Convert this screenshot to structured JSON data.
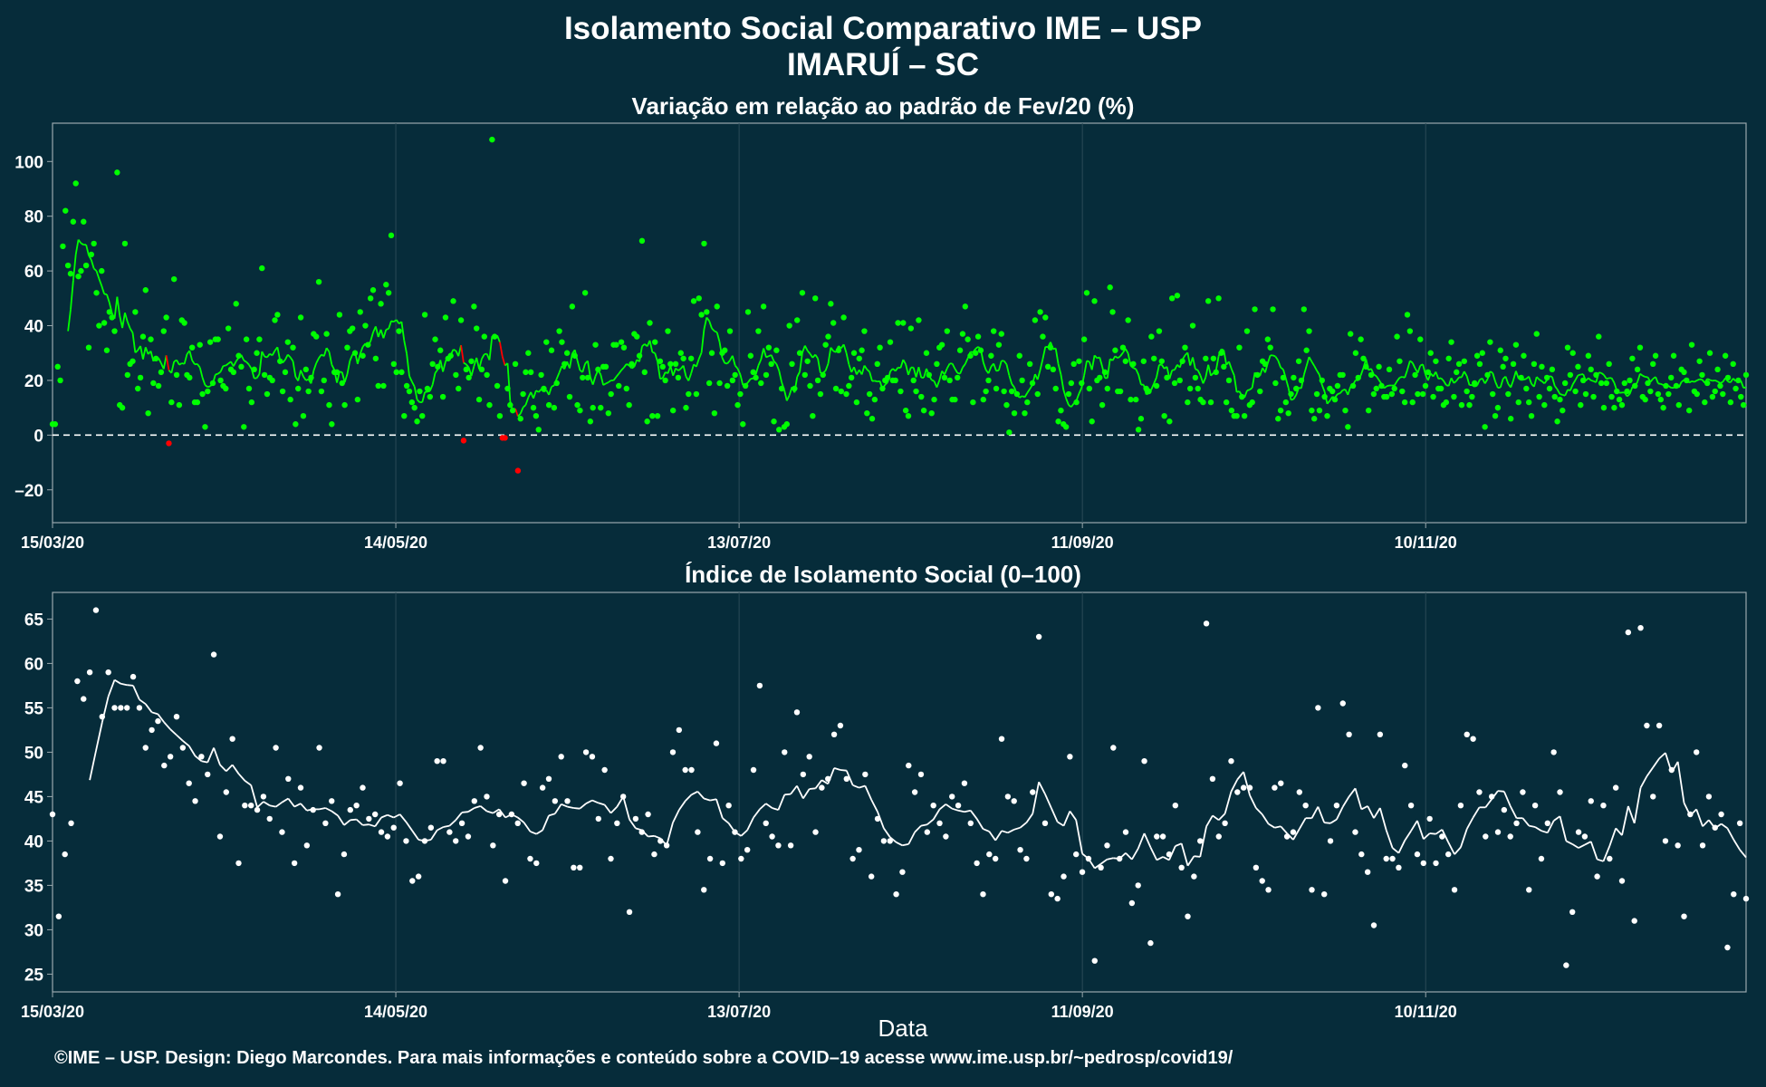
{
  "header": {
    "title": "Isolamento Social Comparativo IME – USP",
    "subtitle": "IMARUÍ – SC"
  },
  "footer": {
    "credit": "©IME – USP. Design: Diego Marcondes. Para mais informações e conteúdo sobre a COVID–19 acesse www.ime.usp.br/~pedrosp/covid19/"
  },
  "colors": {
    "background": "#062c3a",
    "positive": "#00ff00",
    "negative": "#ff0000",
    "index": "#ffffff",
    "panel_border": "#9aa8ad",
    "grid": "#2a4a57"
  },
  "chart_data": [
    {
      "type": "scatter",
      "title": "Variação em relação ao padrão de Fev/20 (%)",
      "xlabel": "",
      "ylabel": "",
      "x_start": "15/03/20",
      "x_tick_labels": [
        "15/03/20",
        "14/05/20",
        "13/07/20",
        "11/09/20",
        "10/11/20"
      ],
      "x_tick_days": [
        0,
        60,
        120,
        180,
        240
      ],
      "xlim_days": [
        0,
        296
      ],
      "y_ticks": [
        -20,
        0,
        20,
        40,
        60,
        80,
        100
      ],
      "y_tick_labels": [
        "–20",
        "0",
        "20",
        "40",
        "60",
        "80",
        "100"
      ],
      "ylim": [
        -32,
        114
      ],
      "reference_line": 0,
      "grid": true,
      "series": [
        {
          "values": [
            4,
            4,
            25,
            20,
            69,
            82,
            62,
            59,
            78,
            92,
            58,
            60,
            78,
            62,
            32,
            66,
            70,
            52,
            40,
            60,
            41,
            31,
            45,
            43,
            38,
            96,
            11,
            10,
            70,
            22,
            26,
            27,
            45,
            17,
            21,
            36,
            53,
            8,
            35,
            19,
            28,
            18,
            23,
            38,
            43,
            -3,
            12,
            57,
            22,
            11,
            42,
            41,
            22,
            21,
            32,
            12,
            12,
            33,
            15,
            3,
            16,
            34,
            19,
            35,
            35,
            20,
            18,
            17,
            39,
            24,
            23,
            48,
            29,
            25,
            3,
            35,
            17,
            12,
            24,
            30,
            35,
            61,
            22,
            15,
            21,
            20,
            42,
            44,
            27,
            16,
            23,
            34,
            13,
            32,
            4,
            17,
            43,
            7,
            24,
            16,
            21,
            37,
            36,
            56,
            16,
            20,
            37,
            11,
            4,
            23,
            23,
            44,
            19,
            11,
            32,
            38,
            39,
            30,
            13,
            45,
            29,
            40,
            33,
            50,
            53,
            28,
            18,
            48,
            18,
            55,
            52,
            73,
            26,
            23,
            38,
            23,
            7,
            18,
            16,
            12,
            10,
            5,
            16,
            7,
            44,
            17,
            14,
            26,
            35,
            25,
            31,
            14,
            43,
            28,
            29,
            49,
            22,
            17,
            42,
            -2,
            24,
            21,
            27,
            47,
            39,
            13,
            24,
            36,
            22,
            11,
            108,
            36,
            18,
            7,
            -1,
            -1,
            17,
            11,
            9,
            26,
            -13,
            6,
            15,
            23,
            30,
            23,
            10,
            7,
            2,
            22,
            17,
            34,
            11,
            31,
            10,
            19,
            38,
            34,
            26,
            30,
            14,
            47,
            29,
            11,
            9,
            21,
            52,
            21,
            5,
            10,
            33,
            24,
            10,
            25,
            25,
            8,
            15,
            33,
            33,
            18,
            34,
            32,
            17,
            11,
            26,
            37,
            36,
            29,
            71,
            23,
            5,
            41,
            7,
            34,
            7,
            27,
            25,
            20,
            38,
            26,
            9,
            26,
            21,
            30,
            28,
            10,
            15,
            28,
            49,
            15,
            50,
            44,
            70,
            45,
            19,
            30,
            8,
            47,
            19,
            30,
            31,
            18,
            38,
            20,
            22,
            11,
            15,
            4,
            18,
            45,
            29,
            23,
            21,
            38,
            19,
            47,
            22,
            32,
            26,
            5,
            31,
            2,
            17,
            3,
            4,
            40,
            26,
            17,
            42,
            30,
            52,
            22,
            27,
            18,
            7,
            50,
            20,
            15,
            22,
            33,
            36,
            48,
            41,
            17,
            31,
            16,
            43,
            15,
            18,
            21,
            30,
            12,
            28,
            31,
            38,
            8,
            15,
            6,
            13,
            26,
            32,
            17,
            20,
            21,
            34,
            20,
            20,
            41,
            16,
            41,
            9,
            7,
            39,
            20,
            16,
            42,
            14,
            9,
            30,
            22,
            8,
            13,
            26,
            32,
            33,
            21,
            38,
            20,
            13,
            13,
            21,
            31,
            37,
            47,
            35,
            29,
            12,
            30,
            36,
            31,
            13,
            16,
            20,
            29,
            38,
            17,
            33,
            37,
            16,
            11,
            1,
            16,
            8,
            15,
            29,
            20,
            8,
            12,
            26,
            19,
            42,
            15,
            45,
            36,
            43,
            25,
            32,
            24,
            17,
            5,
            9,
            4,
            3,
            15,
            19,
            26,
            12,
            27,
            19,
            35,
            52,
            17,
            5,
            49,
            20,
            21,
            11,
            23,
            17,
            54,
            45,
            31,
            16,
            16,
            32,
            27,
            42,
            13,
            26,
            13,
            2,
            6,
            27,
            17,
            16,
            36,
            28,
            18,
            38,
            27,
            7,
            21,
            5,
            50,
            19,
            51,
            20,
            27,
            32,
            12,
            17,
            40,
            21,
            17,
            13,
            12,
            28,
            49,
            12,
            28,
            23,
            50,
            30,
            25,
            12,
            20,
            9,
            7,
            7,
            32,
            14,
            7,
            38,
            11,
            12,
            46,
            22,
            16,
            27,
            26,
            35,
            32,
            46,
            19,
            6,
            9,
            21,
            12,
            8,
            15,
            21,
            17,
            27,
            20,
            46,
            31,
            38,
            9,
            6,
            15,
            9,
            20,
            14,
            7,
            17,
            16,
            13,
            18,
            22,
            22,
            9,
            3,
            37,
            18,
            30,
            21,
            35,
            28,
            25,
            9,
            22,
            15,
            17,
            25,
            18,
            14,
            14,
            24,
            15,
            17,
            36,
            27,
            16,
            12,
            44,
            38,
            12,
            22,
            15,
            35,
            15,
            18,
            23,
            30,
            14,
            27,
            17,
            17,
            11,
            12,
            28,
            34,
            14,
            23,
            26,
            11,
            27,
            16,
            11,
            14,
            19,
            29,
            26,
            30,
            3,
            22,
            34,
            15,
            7,
            10,
            31,
            25,
            28,
            15,
            6,
            26,
            33,
            12,
            21,
            29,
            17,
            12,
            7,
            26,
            37,
            14,
            25,
            11,
            21,
            17,
            24,
            14,
            5,
            13,
            9,
            19,
            32,
            22,
            30,
            16,
            25,
            11,
            20,
            15,
            29,
            24,
            14,
            22,
            36,
            19,
            10,
            19,
            26,
            14,
            10,
            16,
            13,
            11,
            19,
            16,
            20,
            28,
            18,
            24,
            32,
            14,
            13,
            19,
            16,
            26,
            29,
            15,
            13,
            10,
            18,
            15,
            21,
            29,
            18,
            11,
            24,
            23,
            20,
            9,
            33,
            16,
            15,
            27,
            22,
            12,
            19,
            30,
            14,
            16,
            24,
            18,
            15,
            29,
            21,
            12,
            26,
            17,
            20,
            14,
            11,
            22
          ]
        }
      ]
    },
    {
      "type": "scatter",
      "title": "Índice de Isolamento Social (0–100)",
      "xlabel": "Data",
      "ylabel": "",
      "x_start": "15/03/20",
      "x_tick_labels": [
        "15/03/20",
        "14/05/20",
        "13/07/20",
        "11/09/20",
        "10/11/20"
      ],
      "x_tick_days": [
        0,
        60,
        120,
        180,
        240
      ],
      "xlim_days": [
        0,
        296
      ],
      "y_ticks": [
        25,
        30,
        35,
        40,
        45,
        50,
        55,
        60,
        65
      ],
      "y_tick_labels": [
        "25",
        "30",
        "35",
        "40",
        "45",
        "50",
        "55",
        "60",
        "65"
      ],
      "ylim": [
        23,
        68
      ],
      "grid": true,
      "series": [
        {
          "values": [
            43,
            31.5,
            38.5,
            42,
            58,
            56,
            59,
            66,
            54,
            59,
            55,
            55,
            55,
            58.5,
            55,
            50.5,
            52.5,
            53.5,
            48.5,
            49.5,
            54,
            50.5,
            46.5,
            44.5,
            49.5,
            47.5,
            61,
            40.5,
            45.5,
            51.5,
            37.5,
            44,
            44,
            43.5,
            45,
            42.5,
            50.5,
            41,
            47,
            37.5,
            46,
            39.5,
            43.5,
            50.5,
            42,
            44.5,
            34,
            38.5,
            43.5,
            44,
            46,
            42.5,
            43,
            41,
            40.5,
            41.5,
            46.5,
            40,
            35.5,
            36,
            40,
            41.5,
            49,
            49,
            41,
            40,
            42,
            40.5,
            44.5,
            50.5,
            45,
            39.5,
            43,
            35.5,
            43,
            42,
            46.5,
            38,
            37.5,
            46,
            47,
            44.5,
            49.5,
            44.5,
            37,
            37,
            50,
            49.5,
            42.5,
            48,
            38,
            42,
            45,
            32,
            42.5,
            41,
            43,
            38.5,
            40,
            39.5,
            50,
            52.5,
            48,
            48,
            41,
            34.5,
            38,
            51,
            37.5,
            44,
            41,
            38,
            39,
            48,
            57.5,
            42,
            40.5,
            39.5,
            50,
            39.5,
            54.5,
            47.5,
            49.5,
            41,
            46,
            47,
            52,
            53,
            47,
            38,
            39,
            47.5,
            36,
            42.5,
            40,
            40,
            34,
            36.5,
            48.5,
            45.5,
            47.5,
            41,
            44,
            42,
            40.5,
            45,
            44,
            46.5,
            42,
            37.5,
            34,
            38.5,
            38,
            51.5,
            45,
            44.5,
            39,
            38,
            45.5,
            63,
            42,
            34,
            33.5,
            36,
            49.5,
            38.5,
            36.5,
            38,
            26.5,
            37,
            39.5,
            50.5,
            38,
            41,
            33,
            35,
            49,
            28.5,
            40.5,
            40.5,
            38.5,
            44,
            37,
            31.5,
            36,
            40,
            64.5,
            47,
            40.5,
            42,
            49,
            45.5,
            46,
            46,
            37,
            35.5,
            34.5,
            46,
            46.5,
            40.5,
            41,
            45.5,
            44,
            34.5,
            55,
            34,
            40,
            44,
            55.5,
            52,
            41,
            38.5,
            36.5,
            30.5,
            52,
            38,
            38,
            37,
            48.5,
            44,
            38.5,
            37.5,
            42.5,
            37.5,
            40.5,
            38.5,
            34.5,
            44,
            52,
            51.5,
            45.5,
            40.5,
            45,
            41,
            43.5,
            40.5,
            42,
            45.5,
            34.5,
            44,
            38,
            42,
            50,
            45.5,
            26,
            32,
            41,
            40.5,
            44.5,
            36,
            44,
            38,
            46,
            35.5,
            63.5,
            31,
            64,
            53,
            45,
            53,
            40,
            48,
            39.5,
            31.5,
            43,
            50,
            39.5,
            45,
            41.5,
            43,
            28,
            34,
            42,
            33.5
          ]
        }
      ]
    }
  ]
}
